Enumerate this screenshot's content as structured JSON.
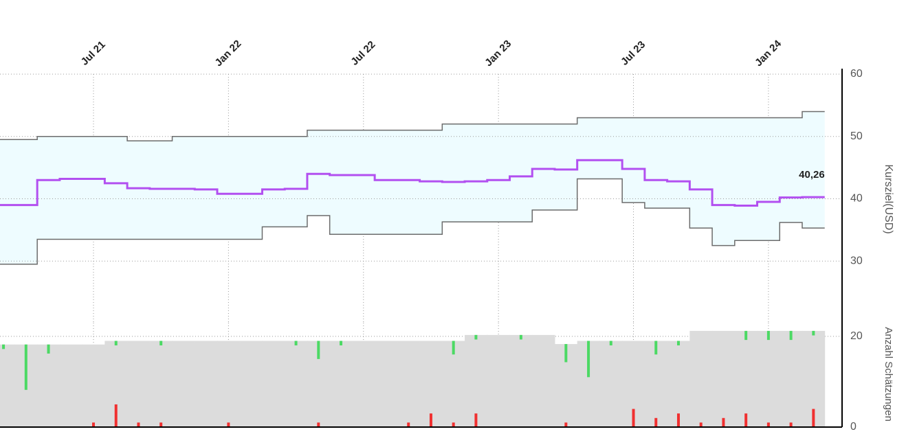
{
  "chart_data": [
    {
      "type": "line",
      "step": true,
      "band_color": "#eefcff",
      "ylabel": "Kursziel(USD)",
      "x": [
        "2021-03",
        "2021-04",
        "2021-05",
        "2021-06",
        "2021-07",
        "2021-08",
        "2021-09",
        "2021-10",
        "2021-11",
        "2021-12",
        "2022-01",
        "2022-02",
        "2022-03",
        "2022-04",
        "2022-05",
        "2022-06",
        "2022-07",
        "2022-08",
        "2022-09",
        "2022-10",
        "2022-11",
        "2022-12",
        "2023-01",
        "2023-02",
        "2023-03",
        "2023-04",
        "2023-05",
        "2023-06",
        "2023-07",
        "2023-08",
        "2023-09",
        "2023-10",
        "2023-11",
        "2023-12",
        "2024-01",
        "2024-02",
        "2024-03"
      ],
      "xlim": [
        "2021-03",
        "2024-03"
      ],
      "xticks": [
        {
          "value": "2021-07",
          "label": "Jul 21"
        },
        {
          "value": "2022-01",
          "label": "Jan 22"
        },
        {
          "value": "2022-07",
          "label": "Jul 22"
        },
        {
          "value": "2023-01",
          "label": "Jan 23"
        },
        {
          "value": "2023-07",
          "label": "Jul 23"
        },
        {
          "value": "2024-01",
          "label": "Jan 24"
        }
      ],
      "ylim": [
        20,
        60
      ],
      "yticks": [
        30,
        40,
        50,
        60
      ],
      "grid": true,
      "series": [
        {
          "color": "#6b6b6b",
          "values": [
            49.5,
            49.5,
            50,
            50,
            50,
            50,
            49.3,
            49.3,
            50,
            50,
            50,
            50,
            50,
            50,
            51,
            51,
            51,
            51,
            51,
            51,
            52,
            52,
            52,
            52,
            52,
            52,
            53,
            53,
            53,
            53,
            53,
            53,
            53,
            53,
            53,
            53,
            54
          ]
        },
        {
          "color": "#b24ff0",
          "values": [
            39,
            39,
            43,
            43.2,
            43.2,
            42.5,
            41.7,
            41.6,
            41.6,
            41.5,
            40.8,
            40.8,
            41.5,
            41.6,
            44,
            43.8,
            43.8,
            43,
            43,
            42.8,
            42.7,
            42.8,
            43,
            43.6,
            44.8,
            44.7,
            46.2,
            46.2,
            44.8,
            43,
            42.8,
            41.5,
            39,
            38.9,
            39.5,
            40.2,
            40.26
          ],
          "value_labels": [
            null,
            null,
            null,
            null,
            null,
            null,
            null,
            null,
            null,
            null,
            null,
            null,
            null,
            null,
            null,
            null,
            null,
            null,
            null,
            null,
            null,
            null,
            null,
            null,
            null,
            null,
            null,
            null,
            null,
            null,
            null,
            null,
            null,
            null,
            null,
            null,
            "40,26"
          ]
        },
        {
          "color": "#6b6b6b",
          "values": [
            29.5,
            29.5,
            33.5,
            33.5,
            33.5,
            33.5,
            33.5,
            33.5,
            33.5,
            33.5,
            33.5,
            33.5,
            35.5,
            35.5,
            37.3,
            34.3,
            34.3,
            34.3,
            34.3,
            34.3,
            36.3,
            36.3,
            36.3,
            36.3,
            38.2,
            38.2,
            43.2,
            43.2,
            39.4,
            38.5,
            38.5,
            35.3,
            32.5,
            33.3,
            33.3,
            36.2,
            35.3
          ]
        }
      ]
    },
    {
      "type": "bar",
      "ylabel": "Anzahl Schätzungen",
      "x": [
        "2021-03",
        "2021-04",
        "2021-05",
        "2021-06",
        "2021-07",
        "2021-08",
        "2021-09",
        "2021-10",
        "2021-11",
        "2021-12",
        "2022-01",
        "2022-02",
        "2022-03",
        "2022-04",
        "2022-05",
        "2022-06",
        "2022-07",
        "2022-08",
        "2022-09",
        "2022-10",
        "2022-11",
        "2022-12",
        "2023-01",
        "2023-02",
        "2023-03",
        "2023-04",
        "2023-05",
        "2023-06",
        "2023-07",
        "2023-08",
        "2023-09",
        "2023-10",
        "2023-11",
        "2023-12",
        "2024-01",
        "2024-02",
        "2024-03"
      ],
      "ylim": [
        0,
        23
      ],
      "yticks": [
        0,
        20
      ],
      "grid": true,
      "series": [
        {
          "color": "#dcdcdc",
          "values": [
            18.2,
            18.2,
            18.2,
            18.2,
            18.2,
            19,
            19,
            19,
            19,
            19,
            19,
            19,
            19,
            19,
            19,
            19,
            19,
            19,
            19,
            19,
            19,
            20.3,
            20.3,
            20.3,
            20.3,
            18.3,
            19,
            19,
            19,
            19,
            19,
            21.2,
            21.2,
            21.2,
            21.2,
            21.2,
            21.2
          ]
        },
        {
          "color": "#4cd964",
          "values": [
            1,
            10,
            2,
            0,
            0,
            1,
            0,
            1,
            0,
            0,
            0,
            0,
            0,
            1,
            4,
            1,
            0,
            0,
            0,
            0,
            3,
            1,
            0,
            1,
            0,
            4,
            8,
            1,
            0,
            3,
            1,
            0,
            0,
            2,
            2,
            2,
            1
          ]
        },
        {
          "color": "#f03030",
          "values": [
            0,
            0,
            0,
            0,
            1,
            5,
            1,
            1,
            0,
            0,
            1,
            0,
            0,
            0,
            1,
            0,
            0,
            0,
            1,
            3,
            1,
            3,
            0,
            0,
            0,
            1,
            0,
            0,
            4,
            2,
            3,
            1,
            2,
            3,
            1,
            1,
            4
          ]
        }
      ]
    }
  ]
}
